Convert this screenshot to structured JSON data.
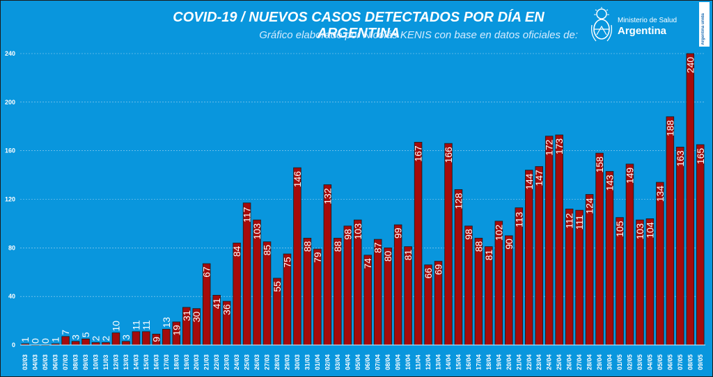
{
  "header": {
    "title": "COVID-19  /  NUEVOS CASOS DETECTADOS POR DÍA EN ARGENTINA",
    "subtitle": "Gráfico elaborado por Nicolás KENIS con base en datos oficiales de:"
  },
  "logo": {
    "ministry": "Ministerio de Salud",
    "country": "Argentina",
    "badge": "Argentina unida"
  },
  "colors": {
    "background": "#0996dd",
    "bar": "#a50b0b",
    "bar_outline": "#1a1a1a",
    "label_dark_bg": "#ffffff",
    "label_light_bg": "#ffffff"
  },
  "chart_data": {
    "type": "bar",
    "title": "COVID-19  /  NUEVOS CASOS DETECTADOS POR DÍA EN ARGENTINA",
    "categories": [
      "03/03",
      "04/03",
      "05/03",
      "06/03",
      "07/03",
      "08/03",
      "09/03",
      "10/03",
      "11/03",
      "12/03",
      "13/03",
      "14/03",
      "15/03",
      "16/03",
      "17/03",
      "18/03",
      "19/03",
      "20/03",
      "21/03",
      "22/03",
      "23/03",
      "24/03",
      "25/03",
      "26/03",
      "27/03",
      "28/03",
      "29/03",
      "30/03",
      "31/03",
      "01/04",
      "02/04",
      "03/04",
      "04/04",
      "05/04",
      "06/04",
      "07/04",
      "08/04",
      "09/04",
      "10/04",
      "11/04",
      "12/04",
      "13/04",
      "14/04",
      "15/04",
      "16/04",
      "17/04",
      "18/04",
      "19/04",
      "20/04",
      "21/04",
      "22/04",
      "23/04",
      "24/04",
      "25/04",
      "26/04",
      "27/04",
      "28/04",
      "29/04",
      "30/04",
      "01/05",
      "02/05",
      "03/05",
      "04/05",
      "05/05",
      "06/05",
      "07/05",
      "08/05",
      "09/05"
    ],
    "values": [
      1,
      0,
      0,
      1,
      7,
      3,
      5,
      2,
      2,
      10,
      3,
      11,
      11,
      9,
      13,
      19,
      31,
      30,
      67,
      41,
      36,
      84,
      117,
      103,
      85,
      55,
      75,
      146,
      88,
      79,
      132,
      88,
      98,
      103,
      74,
      87,
      80,
      99,
      81,
      167,
      66,
      69,
      166,
      128,
      98,
      88,
      81,
      102,
      90,
      113,
      144,
      147,
      172,
      173,
      112,
      111,
      124,
      158,
      143,
      105,
      149,
      103,
      104,
      134,
      188,
      163,
      240,
      165
    ],
    "ylim": [
      0,
      240
    ],
    "yticks": [
      0,
      40,
      80,
      120,
      160,
      200,
      240
    ],
    "grid": true,
    "legend": "none"
  }
}
